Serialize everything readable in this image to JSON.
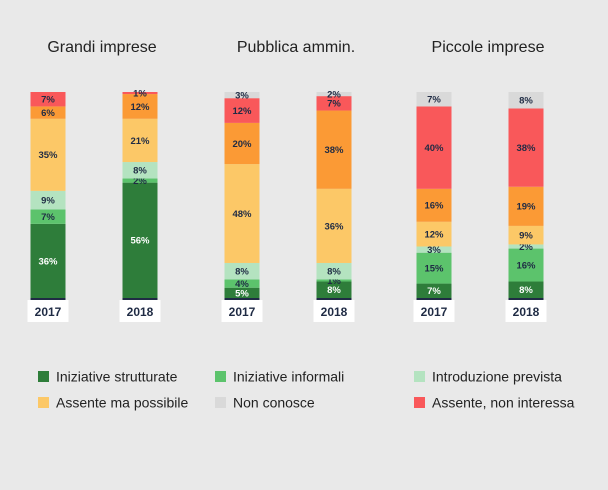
{
  "chart_data": {
    "type": "bar",
    "stacked": true,
    "percent_stacked": true,
    "categories": [
      "2017",
      "2018"
    ],
    "segment_order": [
      "structured",
      "informal",
      "planned",
      "possible",
      "not_interested",
      "unknown"
    ],
    "series": [
      {
        "key": "structured",
        "name": "Iniziative strutturate",
        "color": "#2e7d3a",
        "label_color": "#ffffff"
      },
      {
        "key": "informal",
        "name": "Iniziative informali",
        "color": "#5cc36c",
        "label_color": "#1f2b44"
      },
      {
        "key": "planned",
        "name": "Introduzione prevista",
        "color": "#b4e3c0",
        "label_color": "#1f2b44"
      },
      {
        "key": "possible",
        "name": "Assente ma possibile",
        "color": "#fcc867",
        "label_color": "#1f2b44"
      },
      {
        "key": "not_interested",
        "name": "Assente, non interessa",
        "color": "#f9585a",
        "label_color": "#1f2b44"
      },
      {
        "key": "unknown",
        "name": "Non conosce",
        "color": "#d9d9d9",
        "label_color": "#1f2b44"
      }
    ],
    "extra_segment": {
      "key": "orange",
      "color": "#fb9a35"
    },
    "groups": [
      {
        "title": "Grandi imprese",
        "bars": [
          {
            "year": "2017",
            "segments": [
              {
                "key": "structured",
                "value": 36,
                "label": "36%"
              },
              {
                "key": "informal",
                "value": 7,
                "label": "7%"
              },
              {
                "key": "planned",
                "value": 9,
                "label": "9%"
              },
              {
                "key": "possible",
                "value": 35,
                "label": "35%"
              },
              {
                "key": "orange",
                "value": 6,
                "label": "6%"
              },
              {
                "key": "not_interested",
                "value": 7,
                "label": "7%"
              }
            ]
          },
          {
            "year": "2018",
            "segments": [
              {
                "key": "structured",
                "value": 56,
                "label": "56%"
              },
              {
                "key": "informal",
                "value": 2,
                "label": "2%"
              },
              {
                "key": "planned",
                "value": 8,
                "label": "8%"
              },
              {
                "key": "possible",
                "value": 21,
                "label": "21%"
              },
              {
                "key": "orange",
                "value": 12,
                "label": "12%"
              },
              {
                "key": "not_interested",
                "value": 1,
                "label": "1%"
              }
            ]
          }
        ]
      },
      {
        "title": "Pubblica ammin.",
        "bars": [
          {
            "year": "2017",
            "segments": [
              {
                "key": "structured",
                "value": 5,
                "label": "5%"
              },
              {
                "key": "informal",
                "value": 4,
                "label": "4%"
              },
              {
                "key": "planned",
                "value": 8,
                "label": "8%"
              },
              {
                "key": "possible",
                "value": 48,
                "label": "48%"
              },
              {
                "key": "orange",
                "value": 20,
                "label": "20%"
              },
              {
                "key": "not_interested",
                "value": 12,
                "label": "12%"
              },
              {
                "key": "unknown",
                "value": 3,
                "label": "3%"
              }
            ]
          },
          {
            "year": "2018",
            "segments": [
              {
                "key": "structured",
                "value": 8,
                "label": "8%"
              },
              {
                "key": "informal",
                "value": 1,
                "label": "1%"
              },
              {
                "key": "planned",
                "value": 8,
                "label": "8%"
              },
              {
                "key": "possible",
                "value": 36,
                "label": "36%"
              },
              {
                "key": "orange",
                "value": 38,
                "label": "38%"
              },
              {
                "key": "not_interested",
                "value": 7,
                "label": "7%"
              },
              {
                "key": "unknown",
                "value": 2,
                "label": "2%"
              }
            ]
          }
        ]
      },
      {
        "title": "Piccole imprese",
        "bars": [
          {
            "year": "2017",
            "segments": [
              {
                "key": "structured",
                "value": 7,
                "label": "7%"
              },
              {
                "key": "informal",
                "value": 15,
                "label": "15%"
              },
              {
                "key": "planned",
                "value": 3,
                "label": "3%"
              },
              {
                "key": "possible",
                "value": 12,
                "label": "12%"
              },
              {
                "key": "orange",
                "value": 16,
                "label": "16%"
              },
              {
                "key": "not_interested",
                "value": 40,
                "label": "40%"
              },
              {
                "key": "unknown",
                "value": 7,
                "label": "7%"
              }
            ]
          },
          {
            "year": "2018",
            "segments": [
              {
                "key": "structured",
                "value": 8,
                "label": "8%"
              },
              {
                "key": "informal",
                "value": 16,
                "label": "16%"
              },
              {
                "key": "planned",
                "value": 2,
                "label": "2%"
              },
              {
                "key": "possible",
                "value": 9,
                "label": "9%"
              },
              {
                "key": "orange",
                "value": 19,
                "label": "19%"
              },
              {
                "key": "not_interested",
                "value": 38,
                "label": "38%"
              },
              {
                "key": "unknown",
                "value": 8,
                "label": "8%"
              }
            ]
          }
        ]
      }
    ],
    "legend_layout": [
      [
        "structured",
        "informal",
        "planned"
      ],
      [
        "possible",
        "unknown",
        "not_interested"
      ]
    ],
    "legend": "bottom"
  }
}
